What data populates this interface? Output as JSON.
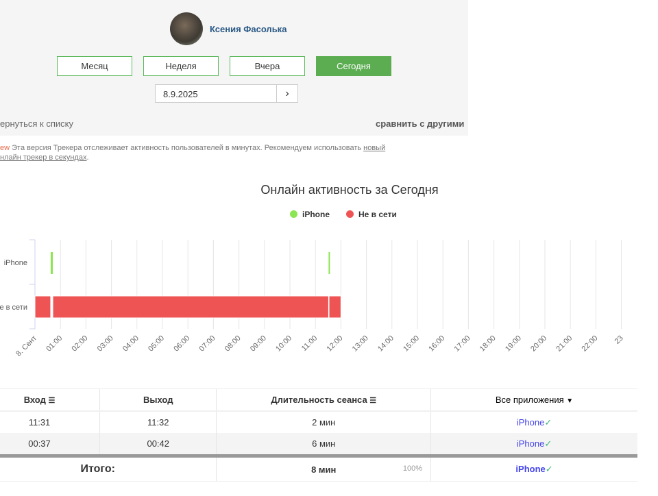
{
  "profile": {
    "name": "Ксения Фасолька"
  },
  "periods": [
    {
      "label": "Месяц",
      "active": false
    },
    {
      "label": "Неделя",
      "active": false
    },
    {
      "label": "Вчера",
      "active": false
    },
    {
      "label": "Сегодня",
      "active": true
    }
  ],
  "date": {
    "value": "8.9.2025",
    "next_icon": "chevron-right"
  },
  "links": {
    "back": "ернуться к списку",
    "compare": "сравнить с другими"
  },
  "notice": {
    "badge": "ew",
    "text": " Эта версия Трекера отслеживает активность пользователей в минутах. Рекомендуем использовать ",
    "link1": "новый",
    "link2": "нлайн трекер в секундах",
    "end": "."
  },
  "chart_data": {
    "type": "timeline",
    "title": "Онлайн активность за Сегодня",
    "legend": [
      {
        "name": "iPhone",
        "color": "#8ce552"
      },
      {
        "name": "Не в сети",
        "color": "#ef5455"
      }
    ],
    "categories": [
      "iPhone",
      "е в сети"
    ],
    "x_ticks": [
      "8. Сент",
      "01:00",
      "02:00",
      "03:00",
      "04:00",
      "05:00",
      "06:00",
      "07:00",
      "08:00",
      "09:00",
      "10:00",
      "11:00",
      "12:00",
      "13:00",
      "14:00",
      "15:00",
      "16:00",
      "17:00",
      "18:00",
      "19:00",
      "20:00",
      "21:00",
      "22:00",
      "23"
    ],
    "series": [
      {
        "name": "iPhone",
        "row": 0,
        "color": "#8ce552",
        "intervals": [
          [
            "00:37",
            "00:42"
          ],
          [
            "11:31",
            "11:32"
          ]
        ]
      },
      {
        "name": "Не в сети",
        "row": 1,
        "color": "#ef5455",
        "intervals": [
          [
            "00:00",
            "00:37"
          ],
          [
            "00:42",
            "11:31"
          ],
          [
            "11:32",
            "12:00"
          ]
        ]
      }
    ]
  },
  "table": {
    "headers": {
      "in": "Вход",
      "out": "Выход",
      "duration": "Длительность сеанса",
      "apps": "Все приложения"
    },
    "rows": [
      {
        "in": "11:31",
        "out": "11:32",
        "duration": "2 мин",
        "app": "iPhone"
      },
      {
        "in": "00:37",
        "out": "00:42",
        "duration": "6 мин",
        "app": "iPhone"
      }
    ],
    "total": {
      "label": "Итого:",
      "duration": "8 мин",
      "percent": "100%",
      "app": "iPhone"
    },
    "check": "✓"
  }
}
